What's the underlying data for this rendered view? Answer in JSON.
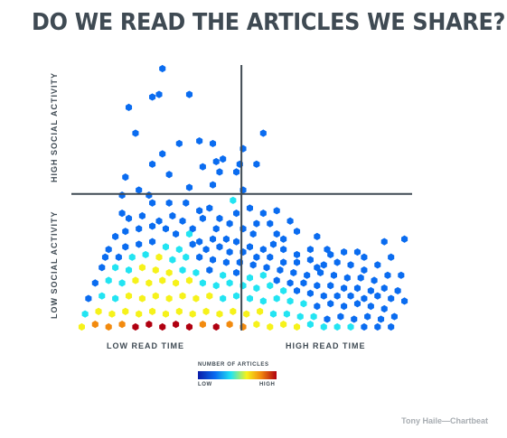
{
  "chart_data": {
    "type": "heatmap",
    "title": "DO WE READ THE ARTICLES WE SHARE?",
    "xlabel_low": "LOW READ TIME",
    "xlabel_high": "HIGH READ TIME",
    "ylabel_low": "LOW SOCIAL ACTIVITY",
    "ylabel_high": "HIGH SOCIAL ACTIVITY",
    "x_range": [
      0,
      100
    ],
    "y_range": [
      0,
      100
    ],
    "quadrant_divider": {
      "x": 49.5,
      "y": 51.5
    },
    "legend": {
      "title": "NUMBER OF ARTICLES",
      "low_label": "LOW",
      "high_label": "HIGH",
      "placement": "bottom-center"
    },
    "color_scale": [
      "#0a1ca8",
      "#0a6cf0",
      "#22e4f2",
      "#f6f21a",
      "#f28a0e",
      "#b00010"
    ],
    "hex_cells": [
      [
        26,
        100,
        1
      ],
      [
        16,
        85,
        1
      ],
      [
        23,
        89,
        1
      ],
      [
        25,
        90,
        1
      ],
      [
        34,
        90,
        1
      ],
      [
        18,
        75,
        1
      ],
      [
        26,
        67,
        1
      ],
      [
        31,
        71,
        1
      ],
      [
        37,
        72,
        1
      ],
      [
        41,
        71,
        1
      ],
      [
        44,
        65,
        1
      ],
      [
        23,
        63,
        1
      ],
      [
        42,
        64,
        1
      ],
      [
        43,
        60,
        1
      ],
      [
        38,
        62,
        1
      ],
      [
        28,
        59,
        1
      ],
      [
        15,
        58,
        1
      ],
      [
        34,
        54,
        1
      ],
      [
        41,
        55,
        1
      ],
      [
        19,
        53,
        1
      ],
      [
        22,
        51,
        1
      ],
      [
        48,
        60,
        1
      ],
      [
        49,
        63,
        1
      ],
      [
        50,
        69,
        1
      ],
      [
        56,
        75,
        1
      ],
      [
        54,
        63,
        1
      ],
      [
        14,
        51,
        1
      ],
      [
        50,
        53,
        1
      ],
      [
        23,
        48,
        1
      ],
      [
        28,
        48,
        1
      ],
      [
        33,
        48,
        1
      ],
      [
        37,
        45,
        1
      ],
      [
        47,
        49,
        2
      ],
      [
        52,
        46,
        1
      ],
      [
        56,
        44,
        1
      ],
      [
        48,
        44,
        1
      ],
      [
        43,
        42,
        1
      ],
      [
        46,
        40,
        1
      ],
      [
        60,
        45,
        1
      ],
      [
        64,
        41,
        1
      ],
      [
        54,
        40,
        1
      ],
      [
        58,
        40,
        1
      ],
      [
        40,
        46,
        1
      ],
      [
        14,
        44,
        1
      ],
      [
        16,
        42,
        1
      ],
      [
        20,
        43,
        1
      ],
      [
        25,
        41,
        1
      ],
      [
        29,
        43,
        1
      ],
      [
        32,
        41,
        1
      ],
      [
        35,
        38,
        1
      ],
      [
        38,
        42,
        1
      ],
      [
        42,
        38,
        1
      ],
      [
        50,
        38,
        1
      ],
      [
        53,
        36,
        1
      ],
      [
        60,
        36,
        1
      ],
      [
        62,
        34,
        1
      ],
      [
        66,
        37,
        1
      ],
      [
        72,
        35,
        1
      ],
      [
        75,
        30,
        1
      ],
      [
        70,
        30,
        1
      ],
      [
        66,
        28,
        1
      ],
      [
        62,
        30,
        1
      ],
      [
        59,
        32,
        1
      ],
      [
        56,
        30,
        1
      ],
      [
        52,
        31,
        1
      ],
      [
        48,
        33,
        1
      ],
      [
        45,
        34,
        1
      ],
      [
        41,
        34,
        1
      ],
      [
        37,
        33,
        1
      ],
      [
        34,
        36,
        2
      ],
      [
        30,
        36,
        1
      ],
      [
        27,
        38,
        1
      ],
      [
        23,
        39,
        1
      ],
      [
        19,
        38,
        1
      ],
      [
        15,
        37,
        1
      ],
      [
        12,
        35,
        1
      ],
      [
        15,
        31,
        1
      ],
      [
        19,
        32,
        1
      ],
      [
        23,
        33,
        1
      ],
      [
        27,
        31,
        2
      ],
      [
        31,
        30,
        2
      ],
      [
        35,
        32,
        1
      ],
      [
        39,
        30,
        1
      ],
      [
        43,
        31,
        1
      ],
      [
        46,
        29,
        1
      ],
      [
        50,
        29,
        1
      ],
      [
        54,
        27,
        1
      ],
      [
        58,
        27,
        1
      ],
      [
        62,
        25,
        1
      ],
      [
        66,
        25,
        1
      ],
      [
        70,
        26,
        1
      ],
      [
        74,
        24,
        1
      ],
      [
        78,
        25,
        1
      ],
      [
        82,
        24,
        1
      ],
      [
        86,
        22,
        1
      ],
      [
        90,
        24,
        1
      ],
      [
        94,
        27,
        1
      ],
      [
        98,
        34,
        1
      ],
      [
        92,
        33,
        1
      ],
      [
        84,
        29,
        1
      ],
      [
        80,
        29,
        1
      ],
      [
        86,
        27,
        1
      ],
      [
        76,
        28,
        1
      ],
      [
        72,
        23,
        1
      ],
      [
        10,
        30,
        1
      ],
      [
        9,
        27,
        1
      ],
      [
        13,
        27,
        1
      ],
      [
        17,
        27,
        2
      ],
      [
        21,
        28,
        2
      ],
      [
        25,
        27,
        3
      ],
      [
        29,
        26,
        2
      ],
      [
        33,
        27,
        2
      ],
      [
        37,
        27,
        1
      ],
      [
        41,
        26,
        1
      ],
      [
        45,
        25,
        1
      ],
      [
        49,
        25,
        1
      ],
      [
        53,
        24,
        1
      ],
      [
        57,
        23,
        1
      ],
      [
        61,
        22,
        1
      ],
      [
        65,
        21,
        1
      ],
      [
        69,
        20,
        1
      ],
      [
        73,
        21,
        1
      ],
      [
        77,
        20,
        1
      ],
      [
        81,
        19,
        1
      ],
      [
        85,
        19,
        1
      ],
      [
        89,
        18,
        1
      ],
      [
        93,
        20,
        1
      ],
      [
        97,
        20,
        1
      ],
      [
        8,
        23,
        1
      ],
      [
        12,
        23,
        2
      ],
      [
        16,
        22,
        2
      ],
      [
        20,
        23,
        3
      ],
      [
        24,
        22,
        3
      ],
      [
        28,
        21,
        3
      ],
      [
        32,
        22,
        2
      ],
      [
        36,
        21,
        2
      ],
      [
        40,
        22,
        1
      ],
      [
        44,
        20,
        2
      ],
      [
        48,
        21,
        1
      ],
      [
        52,
        19,
        2
      ],
      [
        56,
        20,
        2
      ],
      [
        60,
        18,
        1
      ],
      [
        64,
        17,
        1
      ],
      [
        68,
        17,
        1
      ],
      [
        72,
        16,
        1
      ],
      [
        76,
        16,
        1
      ],
      [
        80,
        15,
        1
      ],
      [
        84,
        15,
        1
      ],
      [
        88,
        14,
        1
      ],
      [
        92,
        15,
        1
      ],
      [
        96,
        14,
        1
      ],
      [
        6,
        17,
        1
      ],
      [
        10,
        18,
        2
      ],
      [
        14,
        17,
        2
      ],
      [
        18,
        18,
        3
      ],
      [
        22,
        17,
        3
      ],
      [
        26,
        18,
        3
      ],
      [
        30,
        17,
        3
      ],
      [
        34,
        18,
        3
      ],
      [
        38,
        17,
        2
      ],
      [
        42,
        16,
        2
      ],
      [
        46,
        17,
        2
      ],
      [
        50,
        16,
        2
      ],
      [
        54,
        15,
        2
      ],
      [
        58,
        16,
        2
      ],
      [
        62,
        14,
        2
      ],
      [
        66,
        14,
        1
      ],
      [
        70,
        13,
        1
      ],
      [
        74,
        12,
        1
      ],
      [
        78,
        12,
        1
      ],
      [
        82,
        12,
        1
      ],
      [
        86,
        11,
        1
      ],
      [
        90,
        12,
        1
      ],
      [
        94,
        11,
        1
      ],
      [
        98,
        10,
        1
      ],
      [
        4,
        11,
        1
      ],
      [
        8,
        12,
        2
      ],
      [
        12,
        11,
        2
      ],
      [
        16,
        12,
        3
      ],
      [
        20,
        11,
        3
      ],
      [
        24,
        12,
        3
      ],
      [
        28,
        11,
        3
      ],
      [
        32,
        12,
        3
      ],
      [
        36,
        11,
        3
      ],
      [
        40,
        12,
        3
      ],
      [
        44,
        11,
        2
      ],
      [
        48,
        12,
        2
      ],
      [
        52,
        11,
        2
      ],
      [
        56,
        10,
        2
      ],
      [
        60,
        11,
        2
      ],
      [
        64,
        10,
        2
      ],
      [
        68,
        9,
        2
      ],
      [
        72,
        8,
        1
      ],
      [
        76,
        9,
        1
      ],
      [
        80,
        8,
        1
      ],
      [
        84,
        9,
        1
      ],
      [
        88,
        8,
        1
      ],
      [
        92,
        7,
        1
      ],
      [
        3,
        5,
        2
      ],
      [
        7,
        6,
        3
      ],
      [
        11,
        5,
        3
      ],
      [
        15,
        6,
        3
      ],
      [
        19,
        5,
        3
      ],
      [
        23,
        6,
        3
      ],
      [
        27,
        5,
        3
      ],
      [
        31,
        6,
        3
      ],
      [
        35,
        5,
        3
      ],
      [
        39,
        6,
        3
      ],
      [
        43,
        5,
        3
      ],
      [
        47,
        6,
        3
      ],
      [
        51,
        5,
        3
      ],
      [
        55,
        6,
        3
      ],
      [
        59,
        5,
        2
      ],
      [
        63,
        5,
        2
      ],
      [
        67,
        4,
        2
      ],
      [
        71,
        4,
        2
      ],
      [
        75,
        3,
        1
      ],
      [
        79,
        4,
        1
      ],
      [
        83,
        3,
        1
      ],
      [
        87,
        4,
        1
      ],
      [
        91,
        3,
        1
      ],
      [
        95,
        4,
        1
      ],
      [
        2,
        0,
        3
      ],
      [
        6,
        1,
        4
      ],
      [
        10,
        0,
        4
      ],
      [
        14,
        1,
        4
      ],
      [
        18,
        0,
        5
      ],
      [
        22,
        1,
        5
      ],
      [
        26,
        0,
        6
      ],
      [
        30,
        1,
        5
      ],
      [
        34,
        0,
        5
      ],
      [
        38,
        1,
        4
      ],
      [
        42,
        0,
        5
      ],
      [
        46,
        1,
        4
      ],
      [
        50,
        0,
        4
      ],
      [
        54,
        1,
        3
      ],
      [
        58,
        0,
        3
      ],
      [
        62,
        1,
        3
      ],
      [
        66,
        0,
        3
      ],
      [
        70,
        1,
        2
      ],
      [
        74,
        0,
        2
      ],
      [
        78,
        0,
        2
      ],
      [
        82,
        0,
        2
      ],
      [
        86,
        0,
        1
      ],
      [
        90,
        0,
        1
      ],
      [
        94,
        0,
        1
      ]
    ]
  }
}
